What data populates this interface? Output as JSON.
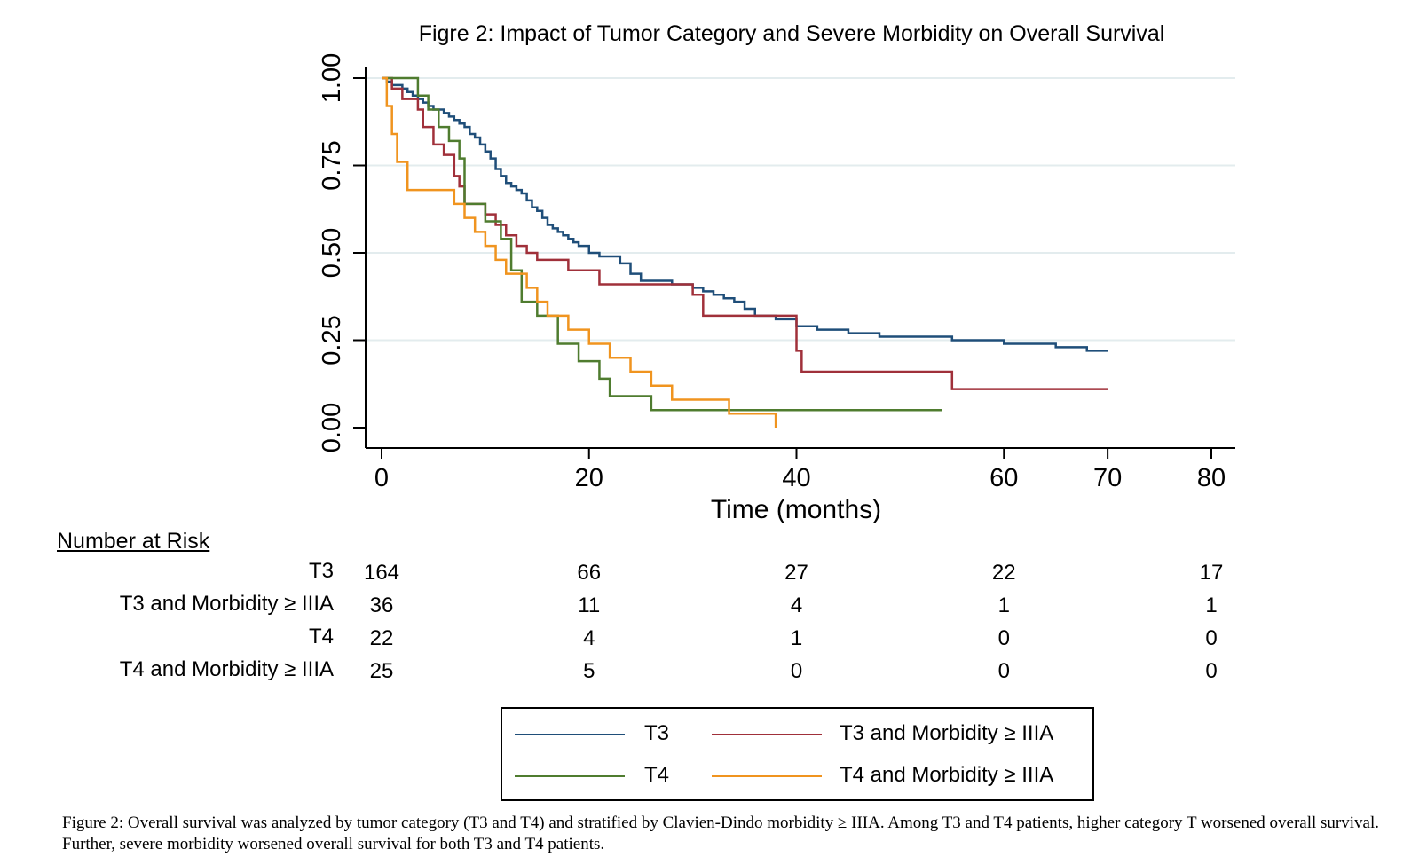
{
  "chart_data": {
    "type": "line",
    "title": "Figre 2: Impact of Tumor Category and Severe Morbidity on Overall Survival",
    "xlabel": "Time (months)",
    "ylabel": "",
    "xlim": [
      0,
      80
    ],
    "ylim": [
      0,
      1
    ],
    "xticks": [
      0,
      20,
      40,
      60,
      70,
      80
    ],
    "xtick_labels": [
      "0",
      "20",
      "40",
      "60",
      "70",
      "80"
    ],
    "yticks": [
      0,
      0.25,
      0.5,
      0.75,
      1
    ],
    "ytick_labels": [
      "0.00",
      "0.25",
      "0.50",
      "0.75",
      "1.00"
    ],
    "grid": "horizontal",
    "legend_position": "bottom",
    "series": [
      {
        "name": "T3",
        "color": "#1f4e79",
        "x": [
          0,
          0.5,
          1,
          1.5,
          2,
          2.5,
          3,
          3.5,
          4,
          4.5,
          5,
          5.5,
          6,
          6.5,
          7,
          7.5,
          8,
          8.5,
          9,
          9.5,
          10,
          10.5,
          11,
          11.5,
          12,
          12.5,
          13,
          13.5,
          14,
          14.5,
          15,
          15.5,
          16,
          16.5,
          17,
          17.5,
          18,
          18.5,
          19,
          20,
          21,
          22,
          23,
          24,
          25,
          26,
          28,
          30,
          31,
          32,
          33,
          34,
          35,
          36,
          38,
          40,
          42,
          45,
          48,
          50,
          55,
          57,
          60,
          63,
          65,
          68,
          70
        ],
        "y": [
          1.0,
          0.99,
          0.98,
          0.98,
          0.97,
          0.96,
          0.95,
          0.94,
          0.93,
          0.92,
          0.91,
          0.91,
          0.9,
          0.89,
          0.88,
          0.87,
          0.86,
          0.84,
          0.83,
          0.81,
          0.79,
          0.77,
          0.74,
          0.72,
          0.7,
          0.69,
          0.68,
          0.67,
          0.65,
          0.63,
          0.62,
          0.6,
          0.58,
          0.57,
          0.56,
          0.55,
          0.54,
          0.53,
          0.52,
          0.5,
          0.49,
          0.49,
          0.47,
          0.44,
          0.42,
          0.42,
          0.41,
          0.4,
          0.39,
          0.38,
          0.37,
          0.36,
          0.34,
          0.32,
          0.31,
          0.29,
          0.28,
          0.27,
          0.26,
          0.26,
          0.25,
          0.25,
          0.24,
          0.24,
          0.23,
          0.22,
          0.22
        ]
      },
      {
        "name": "T3 and Morbidity ≥ IIIA",
        "color": "#a0303a",
        "x": [
          0,
          1,
          2,
          3.5,
          4,
          5,
          6,
          7,
          7.5,
          8,
          10,
          11,
          12,
          13,
          14,
          15,
          18,
          21,
          30,
          31,
          35,
          39,
          40,
          40.5,
          55,
          60,
          70
        ],
        "y": [
          1.0,
          0.97,
          0.94,
          0.91,
          0.86,
          0.81,
          0.78,
          0.72,
          0.69,
          0.64,
          0.61,
          0.58,
          0.55,
          0.52,
          0.5,
          0.48,
          0.45,
          0.41,
          0.38,
          0.32,
          0.32,
          0.32,
          0.22,
          0.16,
          0.11,
          0.11,
          0.11
        ]
      },
      {
        "name": "T4",
        "color": "#4f7c2f",
        "x": [
          0,
          3.5,
          4.5,
          5.5,
          6.5,
          7.5,
          8,
          10,
          11.5,
          12.5,
          13.5,
          15,
          17,
          19,
          21,
          22,
          26,
          30,
          40,
          50,
          54
        ],
        "y": [
          1.0,
          0.95,
          0.91,
          0.86,
          0.82,
          0.77,
          0.64,
          0.59,
          0.54,
          0.45,
          0.36,
          0.32,
          0.24,
          0.19,
          0.14,
          0.09,
          0.05,
          0.05,
          0.05,
          0.05,
          0.05
        ]
      },
      {
        "name": "T4 and Morbidity ≥ IIIA",
        "color": "#f0941f",
        "x": [
          0,
          0.5,
          1,
          1.5,
          2.5,
          5,
          7,
          8,
          9,
          10,
          11,
          12,
          14,
          15,
          16,
          18,
          20,
          22,
          24,
          26,
          28,
          30,
          32,
          33.5,
          35,
          38
        ],
        "y": [
          1.0,
          0.92,
          0.84,
          0.76,
          0.68,
          0.68,
          0.64,
          0.6,
          0.56,
          0.52,
          0.48,
          0.44,
          0.4,
          0.36,
          0.32,
          0.28,
          0.24,
          0.2,
          0.16,
          0.12,
          0.08,
          0.08,
          0.08,
          0.04,
          0.04,
          0.0
        ]
      }
    ]
  },
  "risk_table": {
    "title": "Number at Risk",
    "times": [
      0,
      20,
      40,
      60,
      80
    ],
    "rows": [
      {
        "label": "T3",
        "values": [
          "164",
          "66",
          "27",
          "22",
          "17"
        ]
      },
      {
        "label": "T3 and Morbidity ≥ IIIA",
        "values": [
          "36",
          "11",
          "4",
          "1",
          "1"
        ]
      },
      {
        "label": "T4",
        "values": [
          "22",
          "4",
          "1",
          "0",
          "0"
        ]
      },
      {
        "label": "T4 and Morbidity ≥ IIIA",
        "values": [
          "25",
          "5",
          "0",
          "0",
          "0"
        ]
      }
    ]
  },
  "caption": "Figure 2: Overall survival was analyzed by tumor category  (T3 and T4) and stratified by Clavien-Dindo morbidity ≥ IIIA. Among T3 and T4 patients, higher category T worsened overall survival. Further, severe morbidity worsened overall survival for both T3 and T4 patients."
}
